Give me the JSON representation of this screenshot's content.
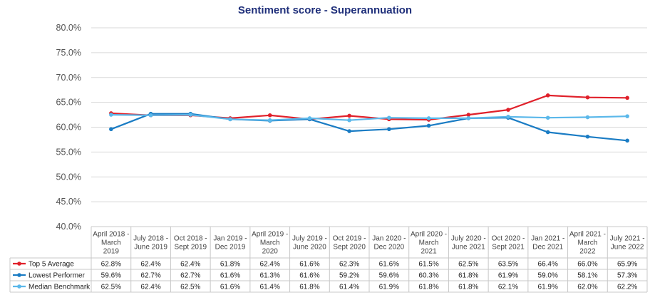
{
  "chart_data": {
    "type": "line",
    "title": "Sentiment score - Superannuation",
    "xlabel": "",
    "ylabel": "",
    "ylim": [
      40,
      80
    ],
    "yticks": [
      "40.0%",
      "45.0%",
      "50.0%",
      "55.0%",
      "60.0%",
      "65.0%",
      "70.0%",
      "75.0%",
      "80.0%"
    ],
    "grid": true,
    "legend": "data-table",
    "categories": [
      [
        "April 2018 -",
        "March",
        "2019"
      ],
      [
        "July 2018 -",
        "June 2019"
      ],
      [
        "Oct 2018 -",
        "Sept 2019"
      ],
      [
        "Jan 2019 -",
        "Dec 2019"
      ],
      [
        "April 2019 -",
        "March",
        "2020"
      ],
      [
        "July 2019 -",
        "June 2020"
      ],
      [
        "Oct 2019 -",
        "Sept 2020"
      ],
      [
        "Jan 2020 -",
        "Dec 2020"
      ],
      [
        "April 2020 -",
        "March",
        "2021"
      ],
      [
        "July 2020 -",
        "June 2021"
      ],
      [
        "Oct 2020 -",
        "Sept 2021"
      ],
      [
        "Jan 2021 -",
        "Dec 2021"
      ],
      [
        "April 2021 -",
        "March",
        "2022"
      ],
      [
        "July 2021 -",
        "June 2022"
      ]
    ],
    "series": [
      {
        "name": "Top 5 Average",
        "color": "#e0202a",
        "values": [
          62.8,
          62.4,
          62.4,
          61.8,
          62.4,
          61.6,
          62.3,
          61.6,
          61.5,
          62.5,
          63.5,
          66.4,
          66.0,
          65.9
        ],
        "labels": [
          "62.8%",
          "62.4%",
          "62.4%",
          "61.8%",
          "62.4%",
          "61.6%",
          "62.3%",
          "61.6%",
          "61.5%",
          "62.5%",
          "63.5%",
          "66.4%",
          "66.0%",
          "65.9%"
        ]
      },
      {
        "name": "Lowest Performer",
        "color": "#1a7cc4",
        "values": [
          59.6,
          62.7,
          62.7,
          61.6,
          61.3,
          61.6,
          59.2,
          59.6,
          60.3,
          61.8,
          61.9,
          59.0,
          58.1,
          57.3
        ],
        "labels": [
          "59.6%",
          "62.7%",
          "62.7%",
          "61.6%",
          "61.3%",
          "61.6%",
          "59.2%",
          "59.6%",
          "60.3%",
          "61.8%",
          "61.9%",
          "59.0%",
          "58.1%",
          "57.3%"
        ]
      },
      {
        "name": "Median Benchmark",
        "color": "#5bb8ea",
        "values": [
          62.5,
          62.4,
          62.5,
          61.6,
          61.4,
          61.8,
          61.4,
          61.9,
          61.8,
          61.8,
          62.1,
          61.9,
          62.0,
          62.2
        ],
        "labels": [
          "62.5%",
          "62.4%",
          "62.5%",
          "61.6%",
          "61.4%",
          "61.8%",
          "61.4%",
          "61.9%",
          "61.8%",
          "61.8%",
          "62.1%",
          "61.9%",
          "62.0%",
          "62.2%"
        ]
      }
    ]
  }
}
